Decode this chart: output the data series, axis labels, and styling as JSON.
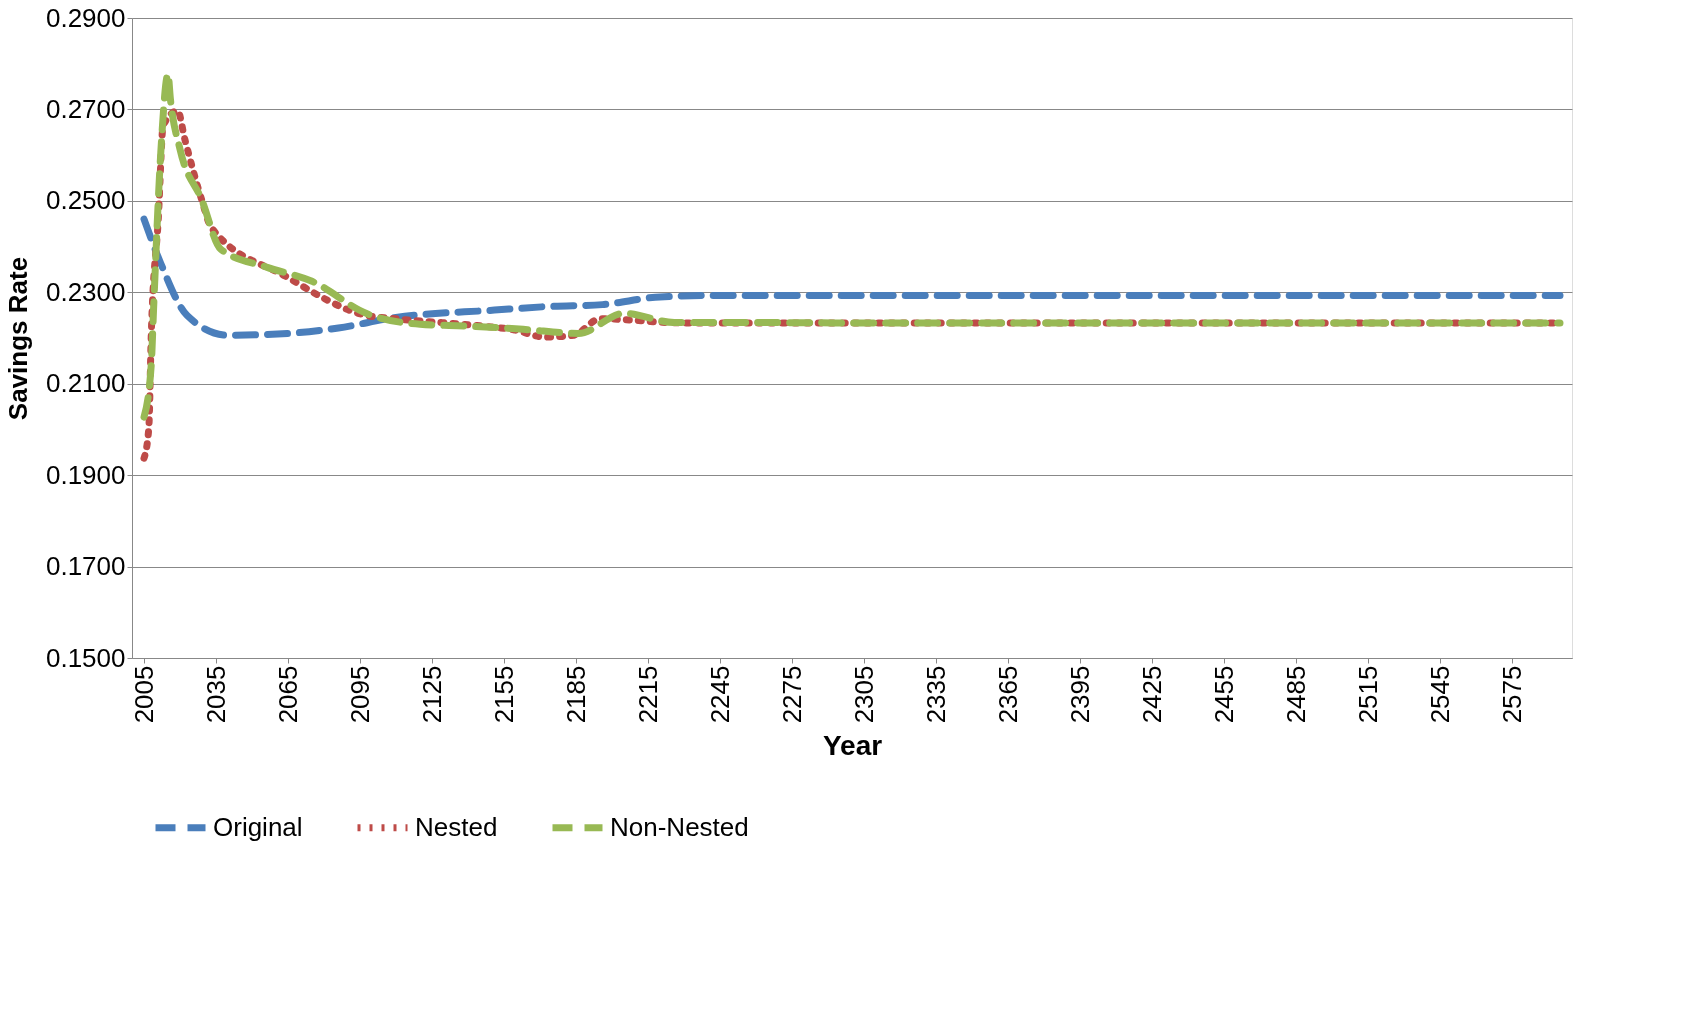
{
  "chart_data": {
    "type": "line",
    "xlabel": "Year",
    "ylabel": "Savings Rate",
    "xlim": [
      2000,
      2600
    ],
    "xticks": [
      2005,
      2035,
      2065,
      2095,
      2125,
      2155,
      2185,
      2215,
      2245,
      2275,
      2305,
      2335,
      2365,
      2395,
      2425,
      2455,
      2485,
      2515,
      2545,
      2575
    ],
    "ylim": [
      0.15,
      0.29
    ],
    "yticks": [
      {
        "value": 0.15,
        "label": "0.1500"
      },
      {
        "value": 0.17,
        "label": "0.1700"
      },
      {
        "value": 0.19,
        "label": "0.1900"
      },
      {
        "value": 0.21,
        "label": "0.2100"
      },
      {
        "value": 0.23,
        "label": "0.2300"
      },
      {
        "value": 0.25,
        "label": "0.2500"
      },
      {
        "value": 0.27,
        "label": "0.2700"
      },
      {
        "value": 0.29,
        "label": "0.2900"
      }
    ],
    "grid": "y",
    "legend": "bottom",
    "marker": "none",
    "series": [
      {
        "name": "Original",
        "color": "#4a7ebb",
        "line_style": "dashed",
        "x": [
          2005,
          2012,
          2023,
          2040,
          2065,
          2086,
          2110,
          2151,
          2174,
          2196,
          2218,
          2240,
          2300,
          2400,
          2500,
          2595
        ],
        "values": [
          0.246,
          0.2363,
          0.2249,
          0.2206,
          0.221,
          0.2222,
          0.2245,
          0.2261,
          0.2269,
          0.2273,
          0.2289,
          0.2293,
          0.2293,
          0.2293,
          0.2293,
          0.2293
        ]
      },
      {
        "name": "Nested",
        "color": "#be4b48",
        "line_style": "dotted",
        "x": [
          2005,
          2007,
          2008,
          2011,
          2013,
          2019,
          2022,
          2029,
          2033,
          2064,
          2098,
          2110,
          2146,
          2159,
          2172,
          2184,
          2195,
          2230,
          2300,
          2400,
          2500,
          2595
        ],
        "values": [
          0.1937,
          0.2003,
          0.2202,
          0.2465,
          0.2665,
          0.2697,
          0.2635,
          0.2503,
          0.2442,
          0.2335,
          0.2249,
          0.2242,
          0.2226,
          0.2218,
          0.2202,
          0.2206,
          0.2242,
          0.2233,
          0.2233,
          0.2233,
          0.2233,
          0.2233
        ]
      },
      {
        "name": "Non-Nested",
        "color": "#98b954",
        "line_style": "dashed",
        "x": [
          2005,
          2008,
          2009,
          2012,
          2015,
          2016,
          2020,
          2029,
          2037,
          2056,
          2075,
          2098,
          2120,
          2140,
          2163,
          2186,
          2205,
          2226,
          2250,
          2300,
          2400,
          2500,
          2595
        ],
        "values": [
          0.2027,
          0.214,
          0.2265,
          0.2606,
          0.2777,
          0.2723,
          0.2613,
          0.2503,
          0.2394,
          0.2355,
          0.2324,
          0.2253,
          0.223,
          0.2226,
          0.2219,
          0.221,
          0.2254,
          0.2234,
          0.2234,
          0.2233,
          0.2233,
          0.2233,
          0.2233
        ]
      }
    ]
  }
}
